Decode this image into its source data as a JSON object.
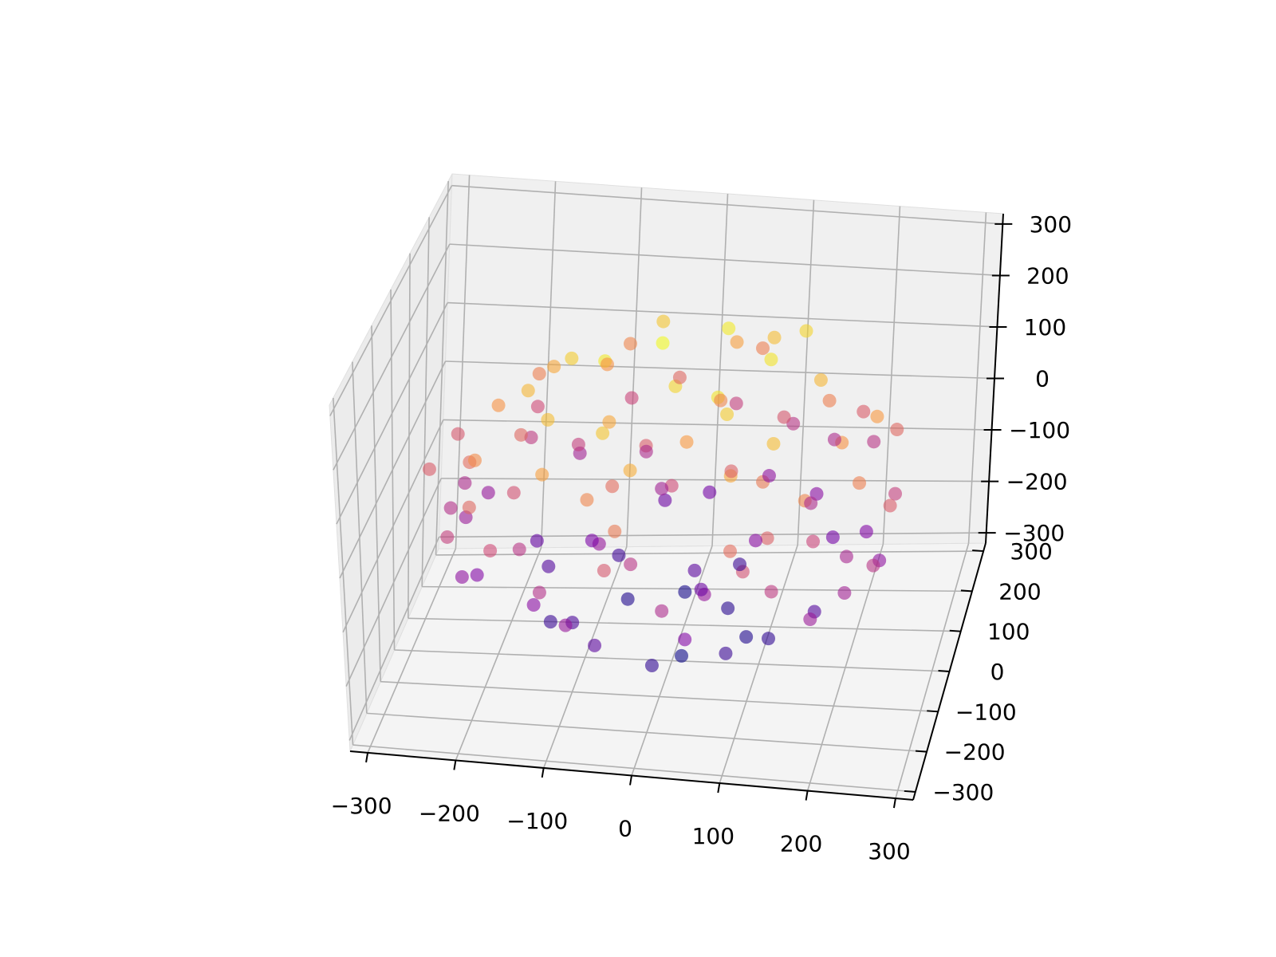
{
  "chart_data": {
    "type": "scatter3d",
    "colormap": "plasma",
    "alpha": 0.6,
    "grid": true,
    "xlim": [
      -320,
      320
    ],
    "ylim": [
      -320,
      320
    ],
    "zlim": [
      -320,
      320
    ],
    "xticks": [
      {
        "value": -300,
        "label": "−300"
      },
      {
        "value": -200,
        "label": "−200"
      },
      {
        "value": -100,
        "label": "−100"
      },
      0,
      100,
      200,
      300
    ],
    "yticks": [
      {
        "value": -300,
        "label": "−300"
      },
      {
        "value": -200,
        "label": "−200"
      },
      {
        "value": -100,
        "label": "−100"
      },
      0,
      100,
      200,
      300
    ],
    "zticks": [
      {
        "value": -300,
        "label": "−300"
      },
      {
        "value": -200,
        "label": "−200"
      },
      {
        "value": -100,
        "label": "−100"
      },
      0,
      100,
      200,
      300
    ],
    "x": [
      12,
      -150,
      200,
      -220,
      90,
      -60,
      250,
      -30,
      140,
      -190,
      60,
      -100,
      170,
      -240,
      30,
      -80,
      220,
      -130,
      100,
      -10,
      70,
      -120,
      160,
      -200,
      40,
      -50,
      230,
      -260,
      120,
      -90,
      190,
      -170,
      0,
      80,
      -150,
      140,
      -210,
      50,
      -40,
      240,
      -110,
      150,
      -250,
      20,
      -70,
      110,
      -180,
      180,
      -20,
      60,
      -230,
      210,
      -60,
      90,
      -140,
      260,
      -270,
      30,
      -30,
      130,
      -160,
      0,
      -100,
      170,
      -200,
      100,
      -120,
      50,
      -60,
      200,
      -190,
      150,
      -80,
      240,
      -250,
      80,
      -40,
      120,
      -130,
      10,
      190,
      -220,
      60,
      -10,
      230,
      -170,
      110,
      -90,
      20,
      -50,
      70,
      -130,
      150,
      -20,
      40,
      -200,
      180,
      -80,
      100,
      -150,
      0,
      -40,
      120,
      -100,
      60,
      -170,
      210,
      -60,
      30,
      160,
      -230,
      90,
      -30,
      140,
      -110,
      250,
      -60,
      80,
      -180,
      40
    ],
    "y": [
      -40,
      80,
      -30,
      -60,
      150,
      -200,
      40,
      220,
      -180,
      160,
      30,
      -90,
      100,
      20,
      -250,
      120,
      -140,
      -170,
      240,
      0,
      -90,
      30,
      60,
      -130,
      190,
      -150,
      -90,
      80,
      -230,
      250,
      180,
      -210,
      100,
      -120,
      50,
      170,
      -80,
      -220,
      200,
      -10,
      -240,
      230,
      -20,
      -60,
      -30,
      20,
      150,
      -160,
      -250,
      250,
      110,
      90,
      -180,
      -30,
      200,
      -60,
      -40,
      260,
      -270,
      130,
      -20,
      -150,
      140,
      -40,
      -170,
      -180,
      -110,
      80,
      60,
      200,
      200,
      -220,
      -250,
      110,
      70,
      -90,
      160,
      -60,
      -60,
      210,
      -200,
      -120,
      120,
      -200,
      30,
      90,
      -250,
      230,
      40,
      -100,
      -10,
      130,
      60,
      -160,
      90,
      10,
      -110,
      -20,
      170,
      -140,
      0,
      60,
      -90,
      50,
      -140,
      -60,
      -60,
      180,
      -70,
      120,
      -150,
      40,
      110,
      -130,
      -200,
      -120,
      -60,
      200,
      40,
      -40
    ],
    "z": [
      210,
      150,
      120,
      60,
      180,
      100,
      -20,
      50,
      40,
      -30,
      -240,
      -200,
      -150,
      -90,
      -60,
      -210,
      -80,
      -120,
      -40,
      260,
      230,
      200,
      170,
      110,
      140,
      190,
      90,
      20,
      10,
      -10,
      30,
      0,
      -260,
      -220,
      -190,
      -120,
      -130,
      -130,
      -160,
      -110,
      -50,
      -60,
      -50,
      -270,
      240,
      230,
      90,
      100,
      80,
      90,
      -100,
      -130,
      -180,
      -250,
      -80,
      30,
      30,
      -20,
      20,
      210,
      170,
      -230,
      120,
      -190,
      50,
      150,
      180,
      240,
      -250,
      -40,
      0,
      -30,
      -100,
      50,
      -60,
      200,
      190,
      -230,
      -220,
      -150,
      -90,
      -110,
      -220,
      160,
      130,
      -170,
      60,
      100,
      -180,
      60,
      40,
      -20,
      -60,
      -40,
      100,
      120,
      -10,
      -100,
      20,
      -40,
      0,
      30,
      80,
      -140,
      -100,
      10,
      -70,
      -60,
      130,
      90,
      -20,
      -120,
      -80,
      180,
      140,
      -40,
      150,
      -110,
      50,
      -160
    ]
  }
}
